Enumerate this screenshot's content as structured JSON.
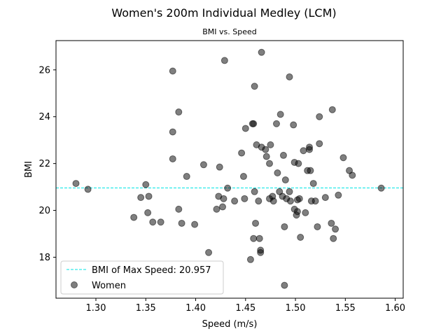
{
  "chart_data": {
    "type": "scatter",
    "title": "Women's 200m Individual Medley (LCM)",
    "subtitle": "BMI vs. Speed",
    "xlabel": "Speed (m/s)",
    "ylabel": "BMI",
    "xlim": [
      1.26,
      1.608
    ],
    "ylim": [
      16.25,
      27.25
    ],
    "xticks": [
      1.3,
      1.35,
      1.4,
      1.45,
      1.5,
      1.55,
      1.6
    ],
    "xtick_labels": [
      "1.30",
      "1.35",
      "1.40",
      "1.45",
      "1.50",
      "1.55",
      "1.60"
    ],
    "yticks": [
      18,
      20,
      22,
      24,
      26
    ],
    "ytick_labels": [
      "18",
      "20",
      "22",
      "24",
      "26"
    ],
    "grid": false,
    "legend_position": "bottom-left",
    "reference_line": {
      "label": "BMI of Max Speed: 20.957",
      "y": 20.957,
      "color": "#00e5e5",
      "style": "dashed"
    },
    "series": [
      {
        "name": "Women",
        "color": "#000000",
        "opacity": 0.5,
        "points": [
          [
            1.28,
            21.15
          ],
          [
            1.292,
            20.9
          ],
          [
            1.338,
            19.7
          ],
          [
            1.345,
            20.55
          ],
          [
            1.35,
            21.1
          ],
          [
            1.352,
            19.9
          ],
          [
            1.353,
            20.6
          ],
          [
            1.357,
            19.5
          ],
          [
            1.365,
            19.5
          ],
          [
            1.377,
            25.95
          ],
          [
            1.377,
            23.35
          ],
          [
            1.377,
            22.2
          ],
          [
            1.383,
            24.2
          ],
          [
            1.383,
            20.05
          ],
          [
            1.386,
            19.45
          ],
          [
            1.391,
            21.45
          ],
          [
            1.399,
            19.4
          ],
          [
            1.408,
            21.95
          ],
          [
            1.413,
            18.2
          ],
          [
            1.421,
            20.05
          ],
          [
            1.423,
            20.6
          ],
          [
            1.424,
            21.85
          ],
          [
            1.427,
            20.15
          ],
          [
            1.428,
            20.5
          ],
          [
            1.429,
            26.4
          ],
          [
            1.432,
            20.95
          ],
          [
            1.439,
            20.4
          ],
          [
            1.446,
            22.45
          ],
          [
            1.448,
            21.45
          ],
          [
            1.449,
            20.5
          ],
          [
            1.45,
            23.5
          ],
          [
            1.455,
            17.9
          ],
          [
            1.457,
            23.7
          ],
          [
            1.458,
            23.7
          ],
          [
            1.458,
            18.8
          ],
          [
            1.459,
            20.8
          ],
          [
            1.459,
            25.3
          ],
          [
            1.46,
            19.45
          ],
          [
            1.461,
            22.8
          ],
          [
            1.463,
            20.4
          ],
          [
            1.464,
            18.8
          ],
          [
            1.465,
            18.2
          ],
          [
            1.465,
            18.3
          ],
          [
            1.466,
            22.7
          ],
          [
            1.466,
            26.75
          ],
          [
            1.47,
            22.6
          ],
          [
            1.471,
            22.3
          ],
          [
            1.474,
            22.0
          ],
          [
            1.474,
            20.5
          ],
          [
            1.475,
            22.8
          ],
          [
            1.477,
            20.6
          ],
          [
            1.478,
            20.4
          ],
          [
            1.481,
            23.7
          ],
          [
            1.482,
            21.6
          ],
          [
            1.484,
            20.8
          ],
          [
            1.485,
            24.1
          ],
          [
            1.487,
            20.6
          ],
          [
            1.488,
            22.35
          ],
          [
            1.489,
            16.8
          ],
          [
            1.489,
            19.3
          ],
          [
            1.49,
            21.3
          ],
          [
            1.491,
            20.5
          ],
          [
            1.494,
            25.7
          ],
          [
            1.494,
            20.8
          ],
          [
            1.495,
            20.4
          ],
          [
            1.498,
            23.65
          ],
          [
            1.499,
            22.05
          ],
          [
            1.499,
            20.05
          ],
          [
            1.501,
            19.8
          ],
          [
            1.502,
            20.45
          ],
          [
            1.502,
            19.95
          ],
          [
            1.503,
            22.0
          ],
          [
            1.504,
            20.5
          ],
          [
            1.505,
            18.85
          ],
          [
            1.508,
            22.55
          ],
          [
            1.51,
            19.9
          ],
          [
            1.512,
            21.7
          ],
          [
            1.514,
            22.7
          ],
          [
            1.514,
            22.6
          ],
          [
            1.515,
            21.7
          ],
          [
            1.516,
            20.4
          ],
          [
            1.518,
            21.15
          ],
          [
            1.52,
            20.4
          ],
          [
            1.522,
            19.3
          ],
          [
            1.524,
            24.0
          ],
          [
            1.524,
            22.85
          ],
          [
            1.53,
            20.55
          ],
          [
            1.536,
            19.45
          ],
          [
            1.537,
            24.3
          ],
          [
            1.538,
            18.8
          ],
          [
            1.54,
            19.2
          ],
          [
            1.543,
            20.65
          ],
          [
            1.548,
            22.25
          ],
          [
            1.554,
            21.7
          ],
          [
            1.557,
            21.5
          ],
          [
            1.586,
            20.95
          ]
        ]
      }
    ]
  }
}
